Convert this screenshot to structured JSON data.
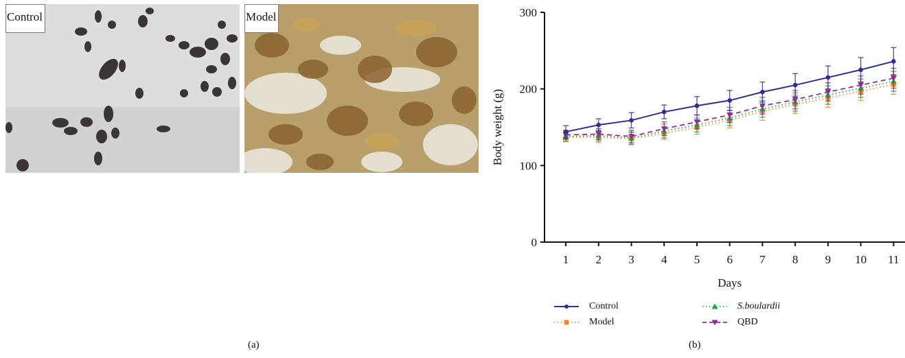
{
  "panel_a": {
    "caption": "(a)",
    "photos": [
      {
        "label": "Control"
      },
      {
        "label": "Model"
      }
    ]
  },
  "panel_b": {
    "caption": "(b)"
  },
  "colors": {
    "control": "#2e2f8f",
    "model": "#f08a24",
    "sboulardii": "#22a34a",
    "qbd": "#8e2d92"
  },
  "chart_data": {
    "type": "line",
    "xlabel": "Days",
    "ylabel": "Body weight (g)",
    "x": [
      1,
      2,
      3,
      4,
      5,
      6,
      7,
      8,
      9,
      10,
      11
    ],
    "x_ticks": [
      "1",
      "2",
      "3",
      "4",
      "5",
      "6",
      "7",
      "8",
      "9",
      "10",
      "11"
    ],
    "y_ticks": [
      "0",
      "100",
      "200",
      "300"
    ],
    "ylim": [
      0,
      300
    ],
    "grid": false,
    "legend_position": "bottom",
    "series": [
      {
        "name": "Control",
        "style": "solid",
        "marker": "circle",
        "color": "#2e2f8f",
        "values": [
          144,
          153,
          159,
          170,
          178,
          185,
          196,
          205,
          215,
          225,
          236
        ],
        "errors": [
          8,
          8,
          10,
          9,
          12,
          13,
          13,
          15,
          15,
          16,
          18
        ]
      },
      {
        "name": "Model",
        "style": "dotted",
        "marker": "square",
        "color": "#f08a24",
        "values": [
          137,
          137,
          135,
          142,
          150,
          159,
          171,
          180,
          188,
          197,
          206
        ],
        "errors": [
          6,
          7,
          8,
          8,
          9,
          10,
          12,
          12,
          12,
          12,
          13
        ]
      },
      {
        "name": "S.boulardii",
        "style": "dotted",
        "marker": "triangle",
        "color": "#22a34a",
        "values": [
          138,
          139,
          136,
          145,
          153,
          162,
          174,
          183,
          192,
          201,
          210
        ],
        "errors": [
          6,
          7,
          8,
          9,
          9,
          10,
          11,
          12,
          12,
          12,
          13
        ]
      },
      {
        "name": "QBD",
        "style": "dashed",
        "marker": "triangle-down",
        "color": "#8e2d92",
        "values": [
          140,
          141,
          138,
          148,
          157,
          166,
          178,
          186,
          196,
          205,
          214
        ],
        "errors": [
          6,
          7,
          8,
          9,
          9,
          10,
          11,
          12,
          12,
          12,
          13
        ]
      }
    ]
  }
}
